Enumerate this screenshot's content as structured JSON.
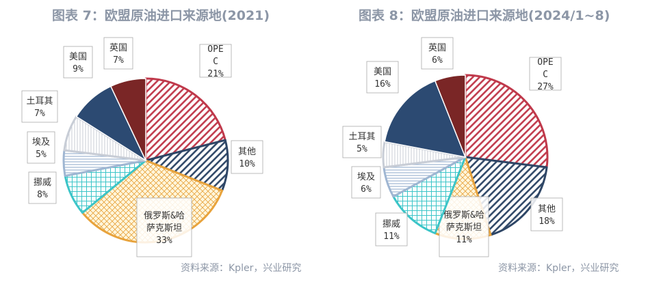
{
  "chart_data": [
    {
      "type": "pie",
      "title": "图表 7：欧盟原油进口来源地(2021)",
      "source": "资料来源：Kpler，兴业研究",
      "slices": [
        {
          "name": "OPEC",
          "value": 21,
          "label": "21%",
          "color": "#c0394b",
          "pattern": "diag"
        },
        {
          "name": "其他",
          "value": 10,
          "label": "10%",
          "color": "#2e4666",
          "pattern": "diag"
        },
        {
          "name": "俄罗斯&哈萨克斯坦",
          "value": 33,
          "label": "33%",
          "color": "#e8a33c",
          "pattern": "cross"
        },
        {
          "name": "挪威",
          "value": 8,
          "label": "8%",
          "color": "#3cc5c8",
          "pattern": "grid"
        },
        {
          "name": "埃及",
          "value": 5,
          "label": "5%",
          "color": "#9fb6d2",
          "pattern": "hlines"
        },
        {
          "name": "土耳其",
          "value": 7,
          "label": "7%",
          "color": "#c8cdd6",
          "pattern": "vlines"
        },
        {
          "name": "美国",
          "value": 9,
          "label": "9%",
          "color": "#2c4a72",
          "pattern": "solid"
        },
        {
          "name": "英国",
          "value": 7,
          "label": "7%",
          "color": "#7a2626",
          "pattern": "solid"
        }
      ]
    },
    {
      "type": "pie",
      "title": "图表 8：欧盟原油进口来源地(2024/1~8)",
      "source": "资料来源：Kpler，兴业研究",
      "slices": [
        {
          "name": "OPEC",
          "value": 27,
          "label": "27%",
          "color": "#c0394b",
          "pattern": "diag"
        },
        {
          "name": "其他",
          "value": 18,
          "label": "18%",
          "color": "#2e4666",
          "pattern": "diag"
        },
        {
          "name": "俄罗斯&哈萨克斯坦",
          "value": 11,
          "label": "11%",
          "color": "#e8a33c",
          "pattern": "cross"
        },
        {
          "name": "挪威",
          "value": 11,
          "label": "11%",
          "color": "#3cc5c8",
          "pattern": "grid"
        },
        {
          "name": "埃及",
          "value": 6,
          "label": "6%",
          "color": "#9fb6d2",
          "pattern": "hlines"
        },
        {
          "name": "土耳其",
          "value": 5,
          "label": "5%",
          "color": "#c8cdd6",
          "pattern": "vlines"
        },
        {
          "name": "美国",
          "value": 16,
          "label": "16%",
          "color": "#2c4a72",
          "pattern": "solid"
        },
        {
          "name": "英国",
          "value": 6,
          "label": "6%",
          "color": "#7a2626",
          "pattern": "solid"
        }
      ]
    }
  ]
}
